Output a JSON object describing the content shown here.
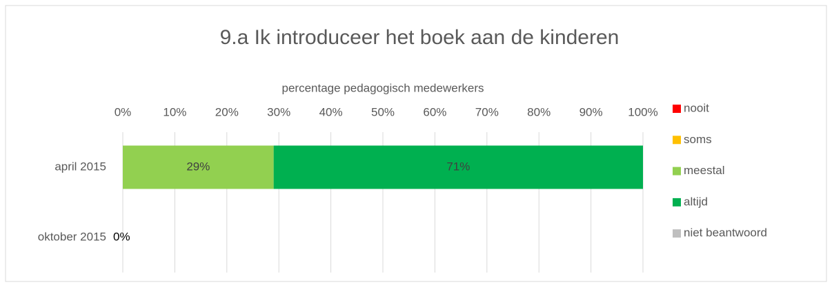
{
  "chart_data": {
    "type": "stacked_barh",
    "title": "9.a Ik introduceer het boek aan de kinderen",
    "x_axis_label": "percentage pedagogisch medewerkers",
    "categories": [
      "april 2015",
      "oktober 2015"
    ],
    "series": [
      {
        "name": "nooit",
        "color": "#ff0000",
        "values": [
          0,
          0
        ],
        "value_labels": [
          null,
          "0%"
        ]
      },
      {
        "name": "soms",
        "color": "#ffc000",
        "values": [
          0,
          null
        ]
      },
      {
        "name": "meestal",
        "color": "#92d050",
        "values": [
          29,
          null
        ],
        "value_labels": [
          "29%",
          null
        ]
      },
      {
        "name": "altijd",
        "color": "#00b050",
        "values": [
          71,
          null
        ],
        "value_labels": [
          "71%",
          null
        ]
      },
      {
        "name": "niet beantwoord",
        "color": "#bfbfbf",
        "values": [
          0,
          null
        ]
      }
    ],
    "xlim": [
      0,
      100
    ],
    "xticks": [
      {
        "value": 0,
        "label": "0%"
      },
      {
        "value": 10,
        "label": "10%"
      },
      {
        "value": 20,
        "label": "20%"
      },
      {
        "value": 30,
        "label": "30%"
      },
      {
        "value": 40,
        "label": "40%"
      },
      {
        "value": 50,
        "label": "50%"
      },
      {
        "value": 60,
        "label": "60%"
      },
      {
        "value": 70,
        "label": "70%"
      },
      {
        "value": 80,
        "label": "80%"
      },
      {
        "value": 90,
        "label": "90%"
      },
      {
        "value": 100,
        "label": "100%"
      }
    ],
    "grid": true,
    "legend": "right"
  }
}
